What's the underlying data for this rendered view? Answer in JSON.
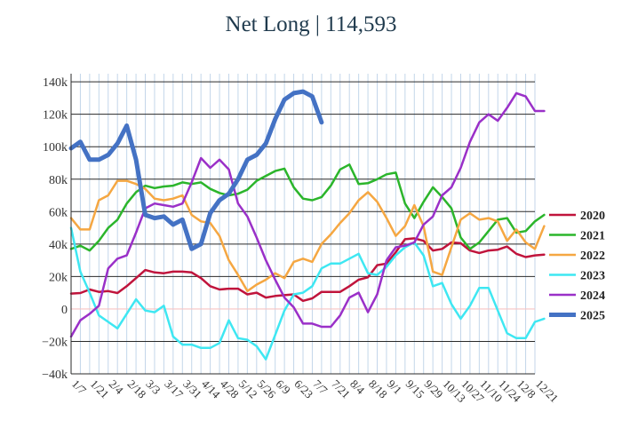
{
  "chart_data": {
    "type": "line",
    "title": "Net Long | 114,593",
    "xlabel": "",
    "ylabel": "",
    "x_ticks": [
      "1/7",
      "1/21",
      "2/4",
      "2/18",
      "3/3",
      "3/17",
      "3/31",
      "4/14",
      "4/28",
      "5/12",
      "5/26",
      "6/9",
      "6/23",
      "7/7",
      "7/21",
      "8/4",
      "8/18",
      "9/1",
      "9/15",
      "9/29",
      "10/13",
      "10/27",
      "11/10",
      "11/24",
      "12/8",
      "12/21"
    ],
    "y_ticks": [
      -40000,
      -20000,
      0,
      20000,
      40000,
      60000,
      80000,
      100000,
      120000,
      140000
    ],
    "y_tick_labels": [
      "−40k",
      "−20k",
      "0",
      "20k",
      "40k",
      "60k",
      "80k",
      "100k",
      "120k",
      "140k"
    ],
    "ylim": [
      -40000,
      145000
    ],
    "xlim": [
      0,
      50
    ],
    "grid": true,
    "legend_position": "right",
    "series": [
      {
        "name": "2020",
        "color": "#c0143c",
        "width": 2.5,
        "values": [
          9500,
          9800,
          12000,
          10500,
          11000,
          9800,
          14000,
          19000,
          24000,
          22500,
          22000,
          23000,
          23000,
          22500,
          19000,
          14000,
          12000,
          12500,
          12500,
          9000,
          10000,
          7000,
          8000,
          8500,
          9000,
          5000,
          6500,
          10500,
          10500,
          10500,
          14000,
          18000,
          19500,
          27000,
          28000,
          35000,
          43000,
          43500,
          42000,
          36000,
          37000,
          41000,
          40500,
          36000,
          34500,
          36000,
          36500,
          38500,
          34000,
          32000,
          33000,
          33500
        ]
      },
      {
        "name": "2021",
        "color": "#2bb52b",
        "width": 2.5,
        "values": [
          37000,
          39000,
          36000,
          42000,
          50000,
          55000,
          65000,
          72000,
          76000,
          74500,
          75500,
          76000,
          78000,
          77000,
          78000,
          74000,
          71500,
          70000,
          71000,
          73500,
          79000,
          82000,
          85000,
          86500,
          75000,
          68000,
          67000,
          69000,
          76000,
          86000,
          89000,
          77000,
          77500,
          80000,
          83000,
          84000,
          65000,
          56000,
          66000,
          75000,
          69000,
          62000,
          44000,
          37000,
          41000,
          48000,
          55000,
          56000,
          47000,
          48000,
          54000,
          58000
        ]
      },
      {
        "name": "2022",
        "color": "#f5a742",
        "width": 2.5,
        "values": [
          56000,
          49000,
          49000,
          67000,
          70000,
          79000,
          79000,
          77000,
          74000,
          68000,
          67000,
          68000,
          70000,
          58000,
          54000,
          53000,
          45000,
          30000,
          21000,
          11000,
          15000,
          18000,
          22000,
          19000,
          29000,
          31000,
          29000,
          40000,
          46000,
          53000,
          59000,
          67000,
          72000,
          66000,
          56000,
          45000,
          51000,
          64000,
          51000,
          23000,
          21000,
          38000,
          55000,
          59000,
          55000,
          56000,
          54000,
          42000,
          49000,
          41000,
          37000,
          51000
        ]
      },
      {
        "name": "2023",
        "color": "#3ee7f2",
        "width": 2.5,
        "values": [
          50000,
          23000,
          10000,
          -4000,
          -8000,
          -12000,
          -3000,
          6000,
          -1000,
          -2000,
          2000,
          -17000,
          -22000,
          -22000,
          -24000,
          -24000,
          -21000,
          -7000,
          -18000,
          -19000,
          -23000,
          -31000,
          -16000,
          -1000,
          9000,
          10000,
          14000,
          25000,
          28000,
          28000,
          31000,
          34000,
          22000,
          21000,
          26000,
          33000,
          38000,
          41000,
          33000,
          14000,
          16000,
          3000,
          -6000,
          2000,
          13000,
          13000,
          -1000,
          -15000,
          -18000,
          -18000,
          -8000,
          -6000
        ]
      },
      {
        "name": "2024",
        "color": "#9a30c8",
        "width": 2.5,
        "values": [
          -17000,
          -7000,
          -3000,
          2000,
          25000,
          31000,
          33000,
          47000,
          62000,
          65000,
          64000,
          63000,
          65000,
          78000,
          93000,
          87000,
          92000,
          86000,
          65000,
          57000,
          44000,
          30000,
          18000,
          7000,
          1000,
          -9000,
          -9000,
          -11000,
          -11000,
          -4000,
          7000,
          10000,
          -2000,
          9000,
          30000,
          38000,
          39000,
          41000,
          52000,
          57000,
          70000,
          75000,
          87000,
          103000,
          115000,
          120000,
          116000,
          124000,
          133000,
          131000,
          122000,
          122000
        ]
      },
      {
        "name": "2025",
        "color": "#4472c4",
        "width": 5,
        "values": [
          99000,
          103000,
          92000,
          92000,
          95000,
          102000,
          113000,
          92000,
          58000,
          56000,
          57000,
          52000,
          55000,
          37000,
          40000,
          59000,
          67000,
          71000,
          80000,
          92000,
          95000,
          102000,
          117000,
          129000,
          133000,
          134000,
          131000,
          115000
        ]
      }
    ]
  }
}
